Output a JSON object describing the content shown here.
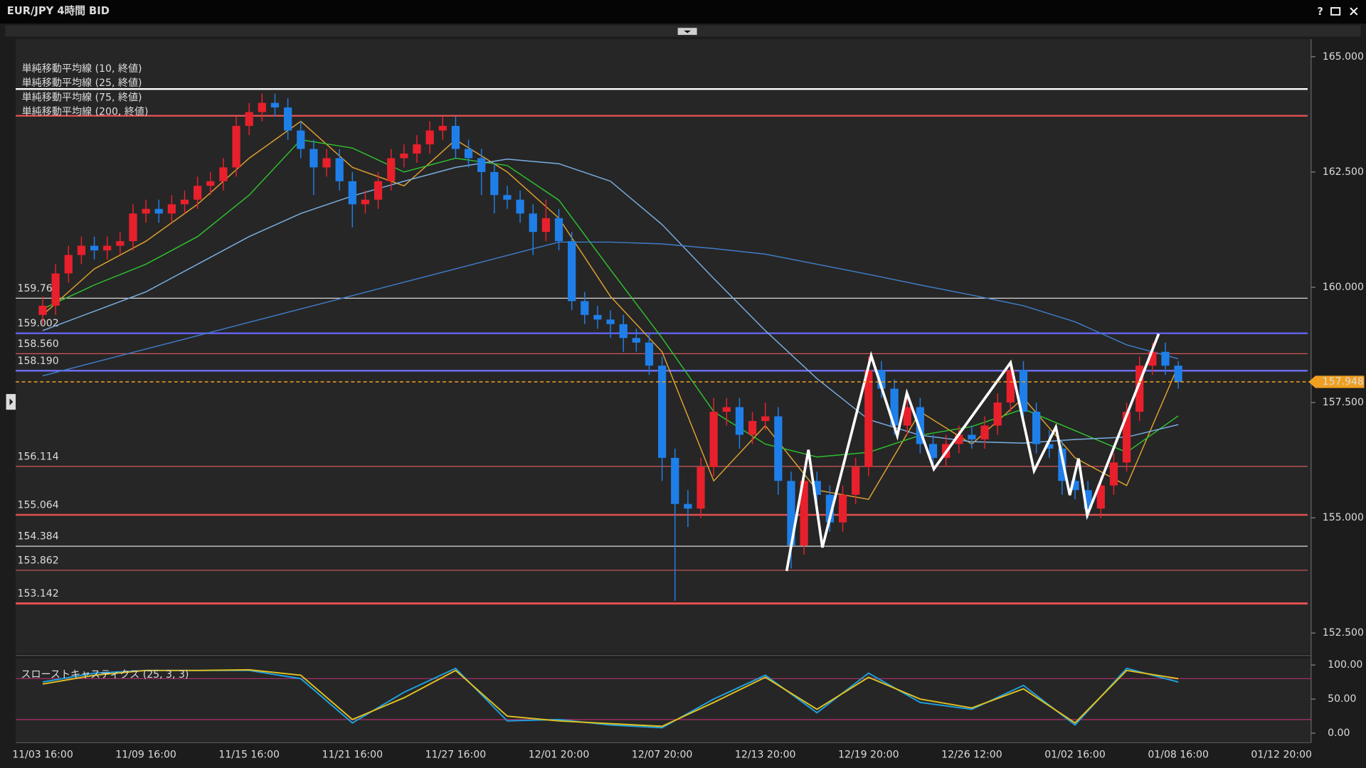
{
  "window": {
    "title": "EUR/JPY 4時間 BID",
    "help": "?"
  },
  "chart_data": [
    {
      "type": "candlestick",
      "categories": [
        "11/03 16:00",
        null,
        null,
        null,
        null,
        null,
        null,
        null,
        "11/09 16:00",
        null,
        null,
        null,
        null,
        null,
        null,
        null,
        "11/15 16:00",
        null,
        null,
        null,
        null,
        null,
        null,
        null,
        "11/21 16:00",
        null,
        null,
        null,
        null,
        null,
        null,
        null,
        "11/27 16:00",
        null,
        null,
        null,
        null,
        null,
        null,
        null,
        "12/01 20:00",
        null,
        null,
        null,
        null,
        null,
        null,
        null,
        "12/07 20:00",
        null,
        null,
        null,
        null,
        null,
        null,
        null,
        "12/13 20:00",
        null,
        null,
        null,
        null,
        null,
        null,
        null,
        "12/19 20:00",
        null,
        null,
        null,
        null,
        null,
        null,
        null,
        "12/26 12:00",
        null,
        null,
        null,
        null,
        null,
        null,
        null,
        "01/02 16:00",
        null,
        null,
        null,
        null,
        null,
        null,
        null,
        "01/08 16:00",
        null,
        null,
        null,
        null,
        null,
        null,
        null,
        "01/12 20:00"
      ],
      "open": [
        159.4,
        159.6,
        160.3,
        160.7,
        160.9,
        160.8,
        160.9,
        161.0,
        161.6,
        161.7,
        161.6,
        161.8,
        161.9,
        162.2,
        162.3,
        162.6,
        163.5,
        163.8,
        164.0,
        163.9,
        163.4,
        163.0,
        162.6,
        162.8,
        162.3,
        161.8,
        161.9,
        162.3,
        162.8,
        162.9,
        163.1,
        163.4,
        163.5,
        163.0,
        162.8,
        162.5,
        162.0,
        161.9,
        161.6,
        161.2,
        161.5,
        161.0,
        159.7,
        159.4,
        159.3,
        159.2,
        158.9,
        158.8,
        158.3,
        156.3,
        155.3,
        155.2,
        156.1,
        157.3,
        157.4,
        156.8,
        157.1,
        157.2,
        155.8,
        154.4,
        155.8,
        155.5,
        154.9,
        155.5,
        156.1,
        158.2,
        157.8,
        157.0,
        157.4,
        156.6,
        156.3,
        156.6,
        156.8,
        156.7,
        157.0,
        157.5,
        158.2,
        157.3,
        156.6,
        156.5,
        155.8,
        155.6,
        155.2,
        155.7,
        156.2,
        157.3,
        158.3,
        158.6,
        158.3,
        null,
        null,
        null,
        null,
        null,
        null,
        null,
        null
      ],
      "high": [
        159.8,
        160.5,
        160.9,
        161.1,
        161.1,
        161.1,
        161.2,
        161.8,
        161.9,
        161.9,
        162.0,
        162.1,
        162.4,
        162.5,
        162.8,
        163.7,
        164.0,
        164.2,
        164.2,
        164.1,
        163.6,
        163.2,
        163.0,
        163.0,
        162.5,
        162.1,
        162.5,
        163.0,
        163.1,
        163.3,
        163.6,
        163.7,
        163.7,
        163.2,
        163.0,
        162.7,
        162.2,
        162.1,
        161.8,
        161.9,
        161.7,
        161.2,
        159.9,
        159.6,
        159.5,
        159.4,
        159.1,
        159.0,
        158.5,
        156.5,
        155.6,
        156.3,
        157.6,
        157.6,
        157.6,
        157.3,
        157.5,
        157.4,
        156.0,
        156.0,
        156.0,
        155.7,
        155.7,
        156.3,
        158.5,
        158.4,
        158.0,
        157.7,
        157.6,
        156.8,
        156.8,
        157.0,
        157.0,
        157.2,
        157.7,
        158.4,
        158.4,
        157.5,
        156.9,
        156.7,
        156.0,
        155.8,
        155.9,
        156.4,
        157.5,
        158.5,
        158.8,
        158.8,
        158.4,
        null,
        null,
        null,
        null,
        null,
        null,
        null,
        null
      ],
      "low": [
        159.2,
        159.4,
        160.1,
        160.5,
        160.6,
        160.6,
        160.7,
        160.8,
        161.4,
        161.4,
        161.4,
        161.6,
        161.7,
        162.0,
        162.1,
        162.4,
        163.3,
        163.6,
        163.7,
        163.2,
        162.8,
        162.0,
        162.4,
        162.1,
        161.3,
        161.6,
        161.7,
        162.1,
        162.6,
        162.7,
        162.9,
        163.2,
        162.8,
        162.6,
        162.0,
        161.6,
        161.7,
        161.4,
        160.7,
        161.0,
        160.8,
        159.5,
        159.2,
        159.1,
        158.9,
        158.6,
        158.6,
        158.1,
        155.8,
        153.2,
        154.8,
        155.0,
        155.9,
        157.0,
        156.5,
        156.6,
        156.9,
        155.5,
        153.9,
        154.2,
        155.2,
        154.7,
        154.7,
        155.3,
        155.9,
        157.6,
        156.8,
        156.8,
        156.4,
        156.1,
        156.1,
        156.4,
        156.5,
        156.5,
        156.8,
        157.3,
        157.1,
        156.4,
        156.3,
        155.5,
        155.4,
        155.0,
        155.0,
        155.5,
        156.0,
        157.1,
        158.1,
        158.1,
        157.8,
        null,
        null,
        null,
        null,
        null,
        null,
        null,
        null
      ],
      "close": [
        159.6,
        160.3,
        160.7,
        160.9,
        160.8,
        160.9,
        161.0,
        161.6,
        161.7,
        161.6,
        161.8,
        161.9,
        162.2,
        162.3,
        162.6,
        163.5,
        163.8,
        164.0,
        163.9,
        163.4,
        163.0,
        162.6,
        162.8,
        162.3,
        161.8,
        161.9,
        162.3,
        162.8,
        162.9,
        163.1,
        163.4,
        163.5,
        163.0,
        162.8,
        162.5,
        162.0,
        161.9,
        161.6,
        161.2,
        161.5,
        161.0,
        159.7,
        159.4,
        159.3,
        159.2,
        158.9,
        158.8,
        158.3,
        156.3,
        155.3,
        155.2,
        156.1,
        157.3,
        157.4,
        156.8,
        157.1,
        157.2,
        155.8,
        154.4,
        155.8,
        155.5,
        154.9,
        155.5,
        156.1,
        158.2,
        157.8,
        157.0,
        157.4,
        156.6,
        156.3,
        156.6,
        156.8,
        156.7,
        157.0,
        157.5,
        158.2,
        157.3,
        156.6,
        156.5,
        155.8,
        155.6,
        155.2,
        155.7,
        156.2,
        157.3,
        158.3,
        158.6,
        158.3,
        157.948,
        null,
        null,
        null,
        null,
        null,
        null,
        null,
        null
      ],
      "up_color": "#e8202c",
      "down_color": "#1f7fe8",
      "ylim": [
        152.05,
        165.38
      ],
      "yticks": [
        {
          "value": 152.5,
          "label": "152.500"
        },
        {
          "value": 155,
          "label": "155.000"
        },
        {
          "value": 157.5,
          "label": "157.500"
        },
        {
          "value": 160,
          "label": "160.000"
        },
        {
          "value": 162.5,
          "label": "162.500"
        },
        {
          "value": 165,
          "label": "165.000"
        }
      ],
      "series": [
        {
          "name": "単純移動平均線 (10, 終値)",
          "color": "#e0a030",
          "x": [
            0,
            4,
            8,
            12,
            16,
            20,
            24,
            28,
            32,
            36,
            40,
            44,
            48,
            52,
            56,
            60,
            64,
            68,
            72,
            76,
            80,
            84,
            88
          ],
          "values": [
            159.4,
            160.4,
            161.0,
            161.8,
            162.8,
            163.6,
            162.6,
            162.2,
            163.2,
            162.5,
            161.5,
            159.8,
            158.6,
            155.8,
            157.0,
            155.6,
            155.4,
            157.3,
            156.6,
            157.6,
            156.3,
            155.7,
            158.3
          ]
        },
        {
          "name": "単純移動平均線 (25, 終値)",
          "color": "#2ec02e",
          "x": [
            0,
            4,
            8,
            12,
            16,
            20,
            24,
            28,
            32,
            36,
            40,
            44,
            48,
            52,
            56,
            60,
            64,
            68,
            72,
            76,
            80,
            84,
            88
          ],
          "values": [
            159.53,
            160.05,
            160.5,
            161.1,
            162.0,
            163.2,
            163.02,
            162.5,
            162.8,
            162.64,
            161.89,
            160.38,
            158.9,
            157.3,
            156.6,
            156.32,
            156.42,
            156.79,
            156.98,
            157.36,
            156.89,
            156.42,
            157.21
          ]
        },
        {
          "name": "単純移動平均線 (75, 終値)",
          "color": "#7aaee0",
          "x": [
            0,
            4,
            8,
            12,
            16,
            20,
            24,
            28,
            32,
            36,
            40,
            44,
            48,
            52,
            56,
            60,
            64,
            68,
            72,
            76,
            80,
            84,
            88
          ],
          "values": [
            159.06,
            159.48,
            159.9,
            160.5,
            161.1,
            161.6,
            161.98,
            162.3,
            162.6,
            162.78,
            162.68,
            162.3,
            161.36,
            160.19,
            159.06,
            158.02,
            157.13,
            156.79,
            156.65,
            156.62,
            156.7,
            156.75,
            157.02
          ]
        },
        {
          "name": "単純移動平均線 (200, 終値)",
          "color": "#3f7cc8",
          "x": [
            0,
            4,
            8,
            12,
            16,
            20,
            24,
            28,
            32,
            36,
            40,
            44,
            48,
            52,
            56,
            60,
            64,
            68,
            72,
            76,
            80,
            84,
            88
          ],
          "values": [
            158.08,
            158.37,
            158.66,
            158.95,
            159.24,
            159.53,
            159.82,
            160.11,
            160.4,
            160.69,
            160.98,
            160.98,
            160.94,
            160.84,
            160.72,
            160.5,
            160.28,
            160.05,
            159.83,
            159.6,
            159.25,
            158.75,
            158.45
          ]
        }
      ],
      "drawn_lines": [
        {
          "value": 164.3,
          "color": "#ffffff",
          "width": 2
        },
        {
          "value": 163.72,
          "color": "#e05050",
          "width": 2
        }
      ],
      "levels": [
        {
          "value": 159.762,
          "color": "#d8d8d8",
          "width": 1
        },
        {
          "value": 159.002,
          "color": "#6464f0",
          "width": 2
        },
        {
          "value": {
            "value": 158.56,
            "label": "158.560"
          },
          "color": "#d05858",
          "width": 1
        },
        {
          "value": {
            "value": 158.19,
            "label": "158.190"
          },
          "color": "#7070f8",
          "width": 2
        },
        {
          "value": 156.114,
          "color": "#d05858",
          "width": 1
        },
        {
          "value": 155.064,
          "color": "#e05050",
          "width": 2
        },
        {
          "value": 154.384,
          "color": "#d8d8d8",
          "width": 1
        },
        {
          "value": 153.862,
          "color": "#d05858",
          "width": 1
        },
        {
          "value": 153.142,
          "color": "#e85050",
          "width": 2.5
        }
      ],
      "current_price": 157.948,
      "current_price_color": "#f0a020"
    },
    {
      "type": "line",
      "title": "スローストキャスティクス (25, 3, 3)",
      "x": [
        0,
        4,
        8,
        12,
        16,
        20,
        24,
        28,
        32,
        36,
        40,
        44,
        48,
        52,
        56,
        60,
        64,
        68,
        72,
        76,
        80,
        84,
        88
      ],
      "series": [
        {
          "color": "#1ea0e0",
          "values": [
            75,
            88,
            92,
            92,
            92,
            80,
            15,
            60,
            95,
            18,
            20,
            12,
            8,
            50,
            85,
            30,
            88,
            45,
            35,
            70,
            12,
            95,
            75
          ]
        },
        {
          "color": "#e0c020",
          "values": [
            72,
            85,
            92,
            92,
            93,
            85,
            20,
            52,
            92,
            25,
            18,
            14,
            10,
            45,
            82,
            35,
            82,
            50,
            37,
            65,
            15,
            92,
            80
          ]
        }
      ],
      "ylim": [
        -14,
        110
      ],
      "yticks": [
        {
          "value": 0,
          "label": "0.00"
        },
        {
          "value": 50,
          "label": "50.00"
        },
        {
          "value": 100,
          "label": "100.00"
        }
      ],
      "levels": [
        80,
        20
      ],
      "level_color": "#b0306e"
    }
  ]
}
